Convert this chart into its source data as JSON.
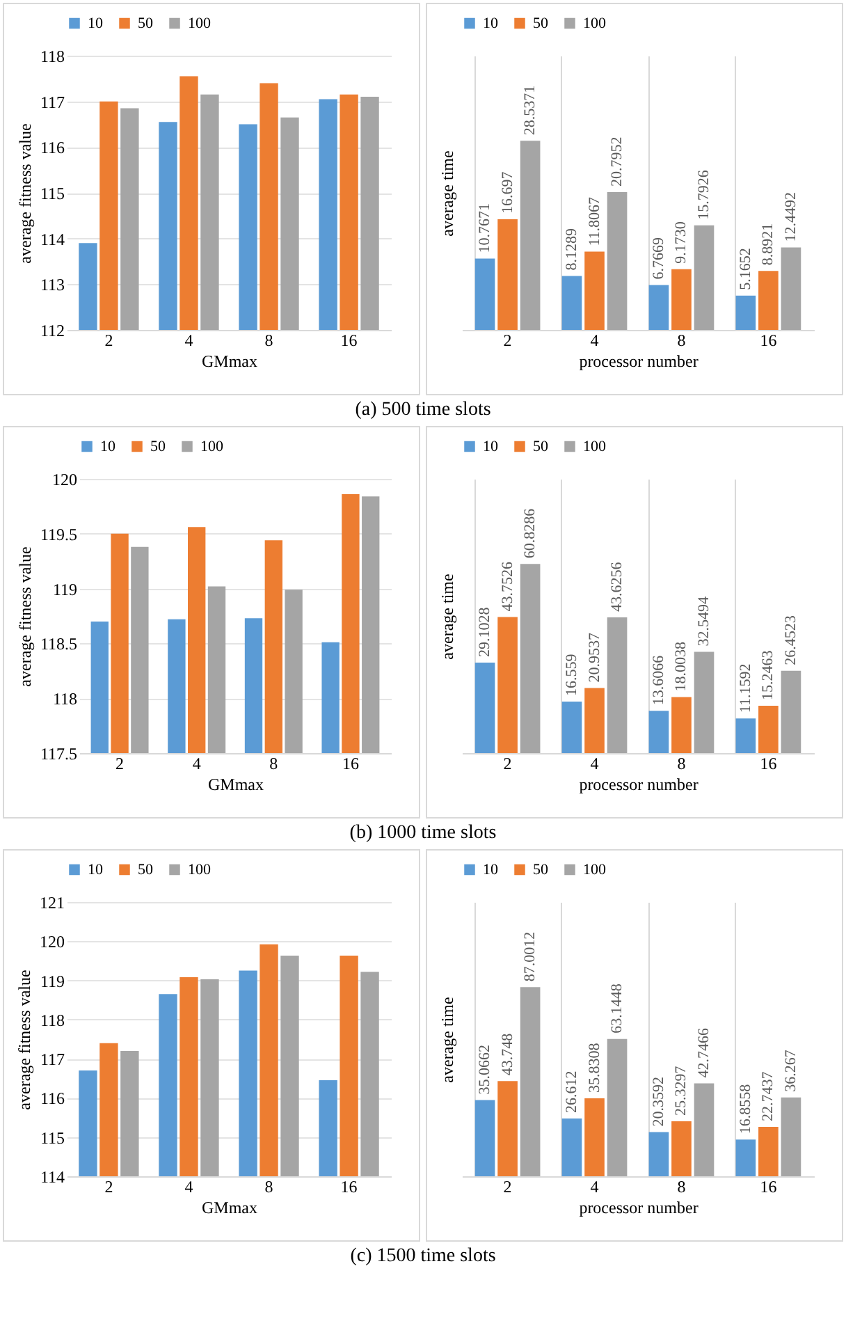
{
  "chart_data": [
    {
      "type": "bar",
      "xlabel": "GMmax",
      "ylabel": "average fitness value",
      "categories": [
        "2",
        "4",
        "8",
        "16"
      ],
      "ylim": [
        112,
        118
      ],
      "yticks": [
        112,
        113,
        114,
        115,
        116,
        117,
        118
      ],
      "grid": "y",
      "legend": "top",
      "annotations": [
        "(a) 500 time slots"
      ],
      "series": [
        {
          "name": "10",
          "color": "#5b9bd5",
          "values": [
            113.9,
            116.55,
            116.5,
            117.05
          ]
        },
        {
          "name": "50",
          "color": "#ed7d31",
          "values": [
            117.0,
            117.55,
            117.4,
            117.15
          ]
        },
        {
          "name": "100",
          "color": "#a5a5a5",
          "values": [
            116.85,
            117.15,
            116.65,
            117.1
          ]
        }
      ]
    },
    {
      "type": "bar",
      "xlabel": "processor number",
      "ylabel": "average time",
      "categories": [
        "2",
        "4",
        "8",
        "16"
      ],
      "grid": "x",
      "legend": "top",
      "tick_labels": "x",
      "series": [
        {
          "name": "10",
          "color": "#5b9bd5",
          "values": [
            10.7671,
            8.1289,
            6.7669,
            5.1652
          ],
          "value_labels": [
            "10.7671",
            "8.1289",
            "6.7669",
            "5.1652"
          ]
        },
        {
          "name": "50",
          "color": "#ed7d31",
          "values": [
            16.697,
            11.8067,
            9.173,
            8.8921
          ],
          "value_labels": [
            "16.697",
            "11.8067",
            "9.1730",
            "8.8921"
          ]
        },
        {
          "name": "100",
          "color": "#a5a5a5",
          "values": [
            28.5371,
            20.7952,
            15.7926,
            12.4492
          ],
          "value_labels": [
            "28.5371",
            "20.7952",
            "15.7926",
            "12.4492"
          ]
        }
      ]
    },
    {
      "type": "bar",
      "xlabel": "GMmax",
      "ylabel": "average fitness value",
      "categories": [
        "2",
        "4",
        "8",
        "16"
      ],
      "ylim": [
        117.5,
        120
      ],
      "yticks": [
        117.5,
        118,
        118.5,
        119,
        119.5,
        120
      ],
      "grid": "y",
      "legend": "top",
      "annotations": [
        "(b) 1000 time slots"
      ],
      "series": [
        {
          "name": "10",
          "color": "#5b9bd5",
          "values": [
            118.7,
            118.72,
            118.73,
            118.51
          ]
        },
        {
          "name": "50",
          "color": "#ed7d31",
          "values": [
            119.5,
            119.56,
            119.44,
            119.86
          ]
        },
        {
          "name": "100",
          "color": "#a5a5a5",
          "values": [
            119.38,
            119.02,
            118.99,
            119.84
          ]
        }
      ]
    },
    {
      "type": "bar",
      "xlabel": "processor number",
      "ylabel": "average time",
      "categories": [
        "2",
        "4",
        "8",
        "16"
      ],
      "grid": "x",
      "legend": "top",
      "tick_labels": "x",
      "series": [
        {
          "name": "10",
          "color": "#5b9bd5",
          "values": [
            29.1028,
            16.559,
            13.6066,
            11.1592
          ],
          "value_labels": [
            "29.1028",
            "16.559",
            "13.6066",
            "11.1592"
          ]
        },
        {
          "name": "50",
          "color": "#ed7d31",
          "values": [
            43.7526,
            20.9537,
            18.0038,
            15.2463
          ],
          "value_labels": [
            "43.7526",
            "20.9537",
            "18.0038",
            "15.2463"
          ]
        },
        {
          "name": "100",
          "color": "#a5a5a5",
          "values": [
            60.8286,
            43.6256,
            32.5494,
            26.4523
          ],
          "value_labels": [
            "60.8286",
            "43.6256",
            "32.5494",
            "26.4523"
          ]
        }
      ]
    },
    {
      "type": "bar",
      "xlabel": "GMmax",
      "ylabel": "average fitness value",
      "categories": [
        "2",
        "4",
        "8",
        "16"
      ],
      "ylim": [
        114,
        121
      ],
      "yticks": [
        114,
        115,
        116,
        117,
        118,
        119,
        120,
        121
      ],
      "grid": "y",
      "legend": "top",
      "annotations": [
        "(c) 1500 time slots"
      ],
      "series": [
        {
          "name": "10",
          "color": "#5b9bd5",
          "values": [
            116.7,
            118.65,
            119.25,
            116.45
          ]
        },
        {
          "name": "50",
          "color": "#ed7d31",
          "values": [
            117.4,
            119.08,
            119.92,
            119.63
          ]
        },
        {
          "name": "100",
          "color": "#a5a5a5",
          "values": [
            117.2,
            119.03,
            119.63,
            119.22
          ]
        }
      ]
    },
    {
      "type": "bar",
      "xlabel": "processor number",
      "ylabel": "average time",
      "categories": [
        "2",
        "4",
        "8",
        "16"
      ],
      "grid": "x",
      "legend": "top",
      "tick_labels": "x",
      "series": [
        {
          "name": "10",
          "color": "#5b9bd5",
          "values": [
            35.0662,
            26.612,
            20.3592,
            16.8558
          ],
          "value_labels": [
            "35.0662",
            "26.612",
            "20.3592",
            "16.8558"
          ]
        },
        {
          "name": "50",
          "color": "#ed7d31",
          "values": [
            43.748,
            35.8308,
            25.3297,
            22.7437
          ],
          "value_labels": [
            "43.748",
            "35.8308",
            "25.3297",
            "22.7437"
          ]
        },
        {
          "name": "100",
          "color": "#a5a5a5",
          "values": [
            87.0012,
            63.1448,
            42.7466,
            36.267
          ],
          "value_labels": [
            "87.0012",
            "63.1448",
            "42.7466",
            "36.267"
          ]
        }
      ]
    }
  ]
}
